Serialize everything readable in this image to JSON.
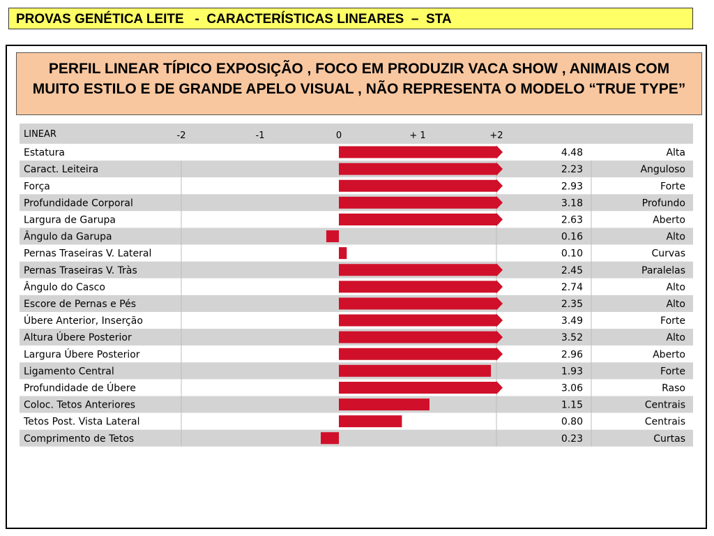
{
  "header": {
    "title": "PROVAS GENÉTICA LEITE   -  CARACTERÍSTICAS LINEARES  –  STA"
  },
  "subtitle": {
    "line1": "PERFIL LINEAR TÍPICO  EXPOSIÇÃO , FOCO EM PRODUZIR VACA SHOW , ANIMAIS COM",
    "line2": "MUITO ESTILO E DE GRANDE APELO VISUAL , NÃO REPRESENTA O MODELO “TRUE TYPE”"
  },
  "chart_data": {
    "type": "bar",
    "orientation": "horizontal",
    "column_header": "LINEAR",
    "tick_labels": [
      "-2",
      "-1",
      "0",
      "+ 1",
      "+2"
    ],
    "tick_values": [
      -2,
      -1,
      0,
      1,
      2
    ],
    "xlim": [
      -2,
      2
    ],
    "bar_color": "#d0102a",
    "categories": [
      "Estatura",
      "Caract. Leiteira",
      "Força",
      "Profundidade Corporal",
      "Largura de Garupa",
      "Ângulo da Garupa",
      "Pernas Traseiras V. Lateral",
      "Pernas Traseiras V. Tràs",
      "Ângulo do Casco",
      "Escore de Pernas e Pés",
      "Úbere Anterior, Inserção",
      "Altura Úbere Posterior",
      "Largura Úbere Posterior",
      "Ligamento Central",
      "Profundidade de Úbere",
      "Coloc. Tetos Anteriores",
      "Tetos Post. Vista Lateral",
      "Comprimento de Tetos"
    ],
    "values": [
      4.48,
      2.23,
      2.93,
      3.18,
      2.63,
      -0.16,
      0.1,
      2.45,
      2.74,
      2.35,
      3.49,
      3.52,
      2.96,
      1.93,
      3.06,
      1.15,
      0.8,
      -0.23
    ],
    "value_labels": [
      "4.48",
      "2.23",
      "2.93",
      "3.18",
      "2.63",
      "0.16",
      "0.10",
      "2.45",
      "2.74",
      "2.35",
      "3.49",
      "3.52",
      "2.96",
      "1.93",
      "3.06",
      "1.15",
      "0.80",
      "0.23"
    ],
    "descriptors": [
      "Alta",
      "Anguloso",
      "Forte",
      "Profundo",
      "Aberto",
      "Alto",
      "Curvas",
      "Paralelas",
      "Alto",
      "Alto",
      "Forte",
      "Alto",
      "Aberto",
      "Forte",
      "Raso",
      "Centrais",
      "Centrais",
      "Curtas"
    ]
  }
}
